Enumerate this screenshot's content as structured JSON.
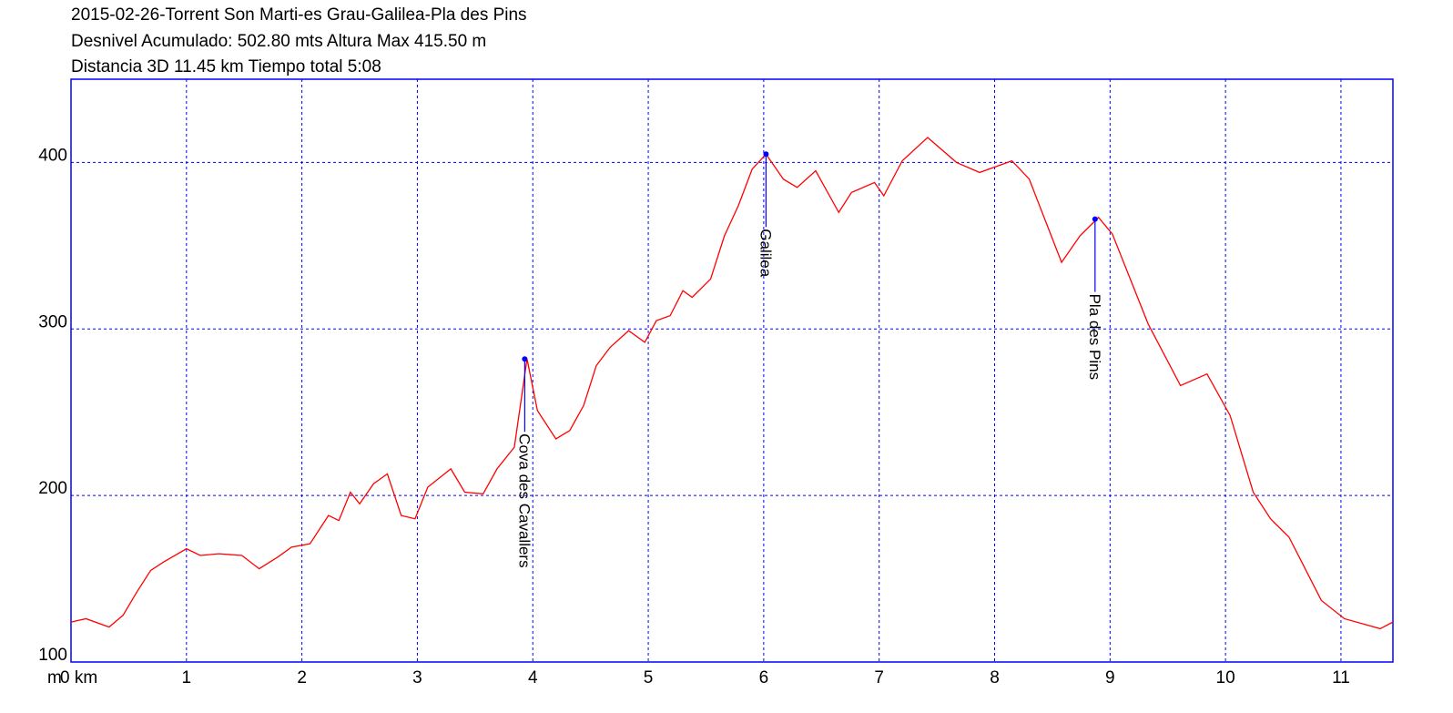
{
  "chart_data": {
    "type": "line",
    "title_lines": [
      "2015-02-26-Torrent Son Marti-es Grau-Galilea-Pla des Pins",
      "Desnivel Acumulado: 502.80 mts  Altura Max 415.50 m",
      "Distancia 3D 11.45 km  Tiempo total 5:08"
    ],
    "y_unit": "m",
    "xlim": [
      0,
      11.45
    ],
    "ylim": [
      100,
      450
    ],
    "xticks": [
      {
        "value": 0,
        "label": "0 km"
      },
      1,
      2,
      3,
      4,
      5,
      6,
      7,
      8,
      9,
      10,
      11
    ],
    "yticks": [
      100,
      200,
      300,
      400
    ],
    "grid": true,
    "grid_color": "#0000ff",
    "frame_color": "#0000ff",
    "x": [
      0,
      0.13,
      0.33,
      0.45,
      0.57,
      0.69,
      0.8,
      1.0,
      1.12,
      1.28,
      1.48,
      1.63,
      1.79,
      1.91,
      2.07,
      2.23,
      2.32,
      2.42,
      2.5,
      2.62,
      2.74,
      2.86,
      2.98,
      3.09,
      3.29,
      3.41,
      3.57,
      3.69,
      3.84,
      3.95,
      4.04,
      4.2,
      4.32,
      4.44,
      4.55,
      4.67,
      4.83,
      4.97,
      5.07,
      5.19,
      5.3,
      5.38,
      5.54,
      5.66,
      5.78,
      5.9,
      6.02,
      6.17,
      6.29,
      6.45,
      6.65,
      6.76,
      6.96,
      7.04,
      7.2,
      7.42,
      7.67,
      7.87,
      8.15,
      8.3,
      8.58,
      8.74,
      8.9,
      9.02,
      9.33,
      9.61,
      9.84,
      10.04,
      10.24,
      10.39,
      10.55,
      10.83,
      11.03,
      11.34,
      11.45
    ],
    "series": [
      {
        "color": "#ff0000",
        "values": [
          124,
          126,
          121,
          128,
          142,
          155,
          160,
          168,
          164,
          165,
          164,
          156,
          163,
          169,
          171,
          188,
          185,
          202,
          195,
          207,
          213,
          188,
          186,
          205,
          216,
          202,
          201,
          216,
          229,
          282,
          251,
          234,
          239,
          254,
          278,
          289,
          299,
          292,
          305,
          308,
          323,
          319,
          330,
          356,
          374,
          396,
          405,
          390,
          385,
          395,
          370,
          382,
          388,
          380,
          401,
          415,
          400,
          394,
          401,
          390,
          340,
          356,
          367,
          357,
          303,
          266,
          273,
          248,
          202,
          186,
          175,
          137,
          126,
          120,
          124
        ]
      }
    ],
    "annotations": [
      {
        "label": "Cova des Cavallers",
        "x": 3.93,
        "y": 282
      },
      {
        "label": "Galilea",
        "x": 6.02,
        "y": 405
      },
      {
        "label": "Pla des Pins",
        "x": 8.87,
        "y": 366
      }
    ],
    "annotation_color": "#0000ff"
  }
}
